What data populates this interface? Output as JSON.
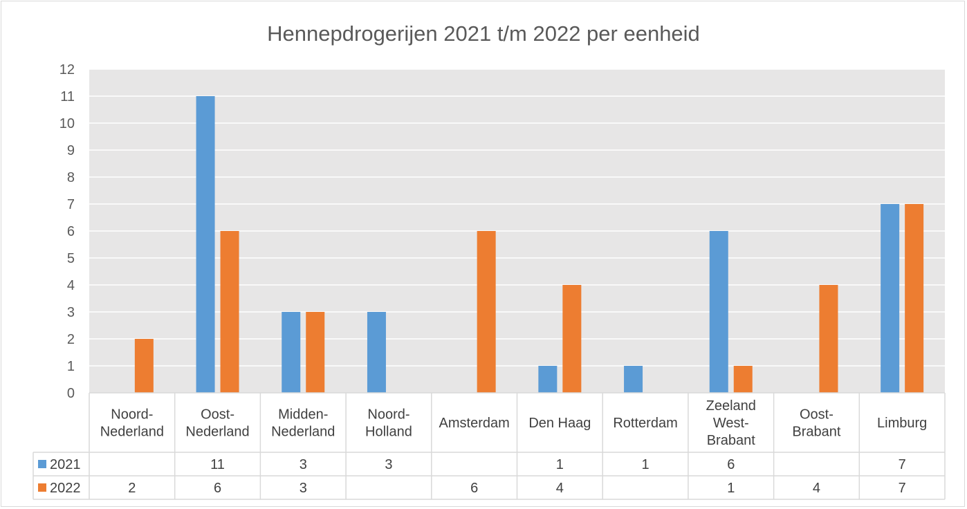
{
  "chart_data": {
    "type": "bar",
    "title": "Hennepdrogerijen 2021 t/m 2022 per eenheid",
    "categories": [
      [
        "Noord-",
        "Nederland"
      ],
      [
        "Oost-",
        "Nederland"
      ],
      [
        "Midden-",
        "Nederland"
      ],
      [
        "Noord-",
        "Holland"
      ],
      [
        "Amsterdam"
      ],
      [
        "Den Haag"
      ],
      [
        "Rotterdam"
      ],
      [
        "Zeeland",
        "West-",
        "Brabant"
      ],
      [
        "Oost-",
        "Brabant"
      ],
      [
        "Limburg"
      ]
    ],
    "series": [
      {
        "name": "2021",
        "color": "#5b9bd5",
        "values": [
          null,
          11,
          3,
          3,
          null,
          1,
          1,
          6,
          null,
          7
        ]
      },
      {
        "name": "2022",
        "color": "#ed7d31",
        "values": [
          2,
          6,
          3,
          null,
          6,
          4,
          null,
          1,
          4,
          7
        ]
      }
    ],
    "ylim": [
      0,
      12
    ],
    "yticks": [
      0,
      1,
      2,
      3,
      4,
      5,
      6,
      7,
      8,
      9,
      10,
      11,
      12
    ],
    "grid": true,
    "legend": "data-table",
    "plot_background": "#e7e6e6"
  }
}
